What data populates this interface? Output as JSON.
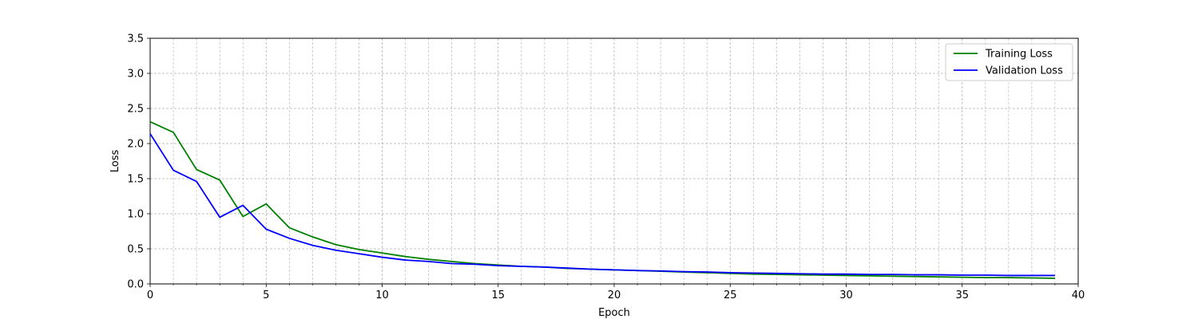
{
  "chart_data": {
    "type": "line",
    "title": "",
    "xlabel": "Epoch",
    "ylabel": "Loss",
    "xlim": [
      0,
      40
    ],
    "ylim": [
      0,
      3.5
    ],
    "xticks": [
      0,
      5,
      10,
      15,
      20,
      25,
      30,
      35,
      40
    ],
    "yticks": [
      0.0,
      0.5,
      1.0,
      1.5,
      2.0,
      2.5,
      3.0,
      3.5
    ],
    "xtick_labels": [
      "0",
      "5",
      "10",
      "15",
      "20",
      "25",
      "30",
      "35",
      "40"
    ],
    "ytick_labels": [
      "0.0",
      "0.5",
      "1.0",
      "1.5",
      "2.0",
      "2.5",
      "3.0",
      "3.5"
    ],
    "grid": true,
    "minor_grid": true,
    "legend_position": "top-right",
    "x": [
      0,
      1,
      2,
      3,
      4,
      5,
      6,
      7,
      8,
      9,
      10,
      11,
      12,
      13,
      14,
      15,
      16,
      17,
      18,
      19,
      20,
      21,
      22,
      23,
      24,
      25,
      26,
      27,
      28,
      29,
      30,
      31,
      32,
      33,
      34,
      35,
      36,
      37,
      38,
      39
    ],
    "series": [
      {
        "name": "Training Loss",
        "color": "#008000",
        "values": [
          2.31,
          2.16,
          1.63,
          1.48,
          0.96,
          1.14,
          0.8,
          0.67,
          0.56,
          0.49,
          0.44,
          0.39,
          0.35,
          0.32,
          0.29,
          0.27,
          0.25,
          0.24,
          0.22,
          0.21,
          0.2,
          0.19,
          0.18,
          0.17,
          0.16,
          0.15,
          0.14,
          0.135,
          0.13,
          0.125,
          0.12,
          0.115,
          0.11,
          0.105,
          0.1,
          0.095,
          0.09,
          0.09,
          0.085,
          0.08
        ]
      },
      {
        "name": "Validation Loss",
        "color": "#0000ff",
        "values": [
          2.14,
          1.62,
          1.46,
          0.95,
          1.12,
          0.78,
          0.65,
          0.55,
          0.48,
          0.43,
          0.38,
          0.34,
          0.32,
          0.29,
          0.28,
          0.26,
          0.25,
          0.24,
          0.225,
          0.21,
          0.2,
          0.19,
          0.185,
          0.175,
          0.17,
          0.16,
          0.155,
          0.15,
          0.145,
          0.14,
          0.14,
          0.135,
          0.135,
          0.13,
          0.13,
          0.125,
          0.125,
          0.12,
          0.12,
          0.12
        ]
      }
    ]
  }
}
